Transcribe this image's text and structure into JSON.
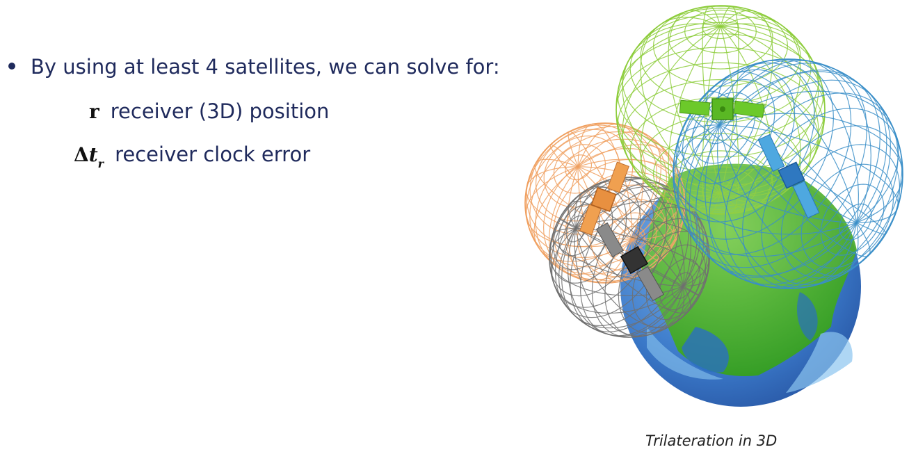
{
  "slide": {
    "bullet": "By using at least 4 satellites, we can solve for:",
    "items": [
      {
        "symbol": "r",
        "text": "receiver (3D) position"
      },
      {
        "symbol_main": "Δ",
        "symbol_var": "t",
        "symbol_sub": "r",
        "text": "receiver clock error"
      }
    ],
    "figure": {
      "caption": "Trilateration in 3D",
      "spheres": [
        {
          "name": "green",
          "color": "#8ccc3a"
        },
        {
          "name": "blue",
          "color": "#3a8ec8"
        },
        {
          "name": "orange",
          "color": "#f0a060"
        },
        {
          "name": "gray",
          "color": "#707070"
        }
      ],
      "earth_colors": {
        "ocean": "#3a78c8",
        "land": "#3aa820"
      }
    }
  }
}
